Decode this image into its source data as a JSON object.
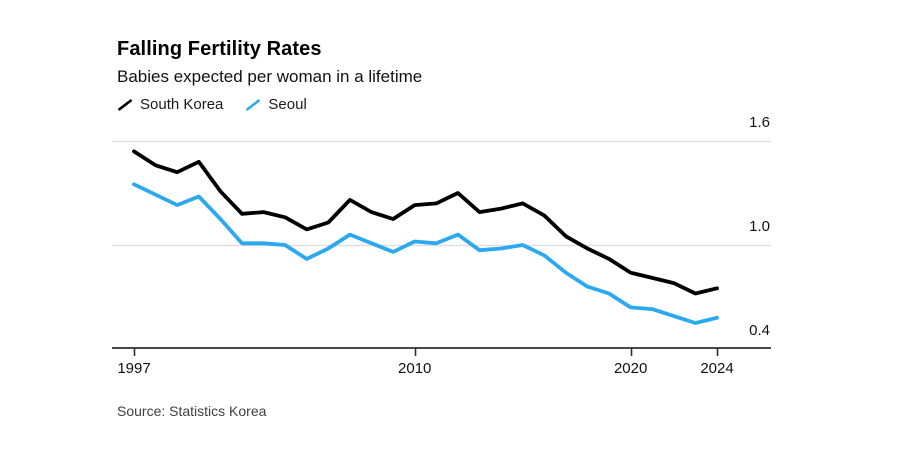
{
  "header": {
    "title": "Falling Fertility Rates",
    "subtitle": "Babies expected per woman in a lifetime"
  },
  "legend": [
    {
      "label": "South Korea",
      "color": "#000000"
    },
    {
      "label": "Seoul",
      "color": "#2ba9f0"
    }
  ],
  "source": "Source: Statistics Korea",
  "colors": {
    "background": "#ffffff",
    "grid": "#dcdcdc",
    "axis": "#2e2e2e",
    "tick_text": "#111111",
    "source_text": "#3f3f3f"
  },
  "chart_data": {
    "type": "line",
    "title": "Falling Fertility Rates",
    "subtitle": "Babies expected per woman in a lifetime",
    "xlabel": "",
    "ylabel": "",
    "x": [
      1997,
      1998,
      1999,
      2000,
      2001,
      2002,
      2003,
      2004,
      2005,
      2006,
      2007,
      2008,
      2009,
      2010,
      2011,
      2012,
      2013,
      2014,
      2015,
      2016,
      2017,
      2018,
      2019,
      2020,
      2021,
      2022,
      2023,
      2024
    ],
    "series": [
      {
        "name": "South Korea",
        "color": "#000000",
        "values": [
          1.54,
          1.46,
          1.42,
          1.48,
          1.31,
          1.18,
          1.19,
          1.16,
          1.09,
          1.13,
          1.26,
          1.19,
          1.15,
          1.23,
          1.24,
          1.3,
          1.19,
          1.21,
          1.24,
          1.17,
          1.05,
          0.98,
          0.92,
          0.84,
          0.81,
          0.78,
          0.72,
          0.75
        ]
      },
      {
        "name": "Seoul",
        "color": "#2ba9f0",
        "values": [
          1.35,
          1.29,
          1.23,
          1.28,
          1.15,
          1.01,
          1.01,
          1.0,
          0.92,
          0.98,
          1.06,
          1.01,
          0.96,
          1.02,
          1.01,
          1.06,
          0.97,
          0.98,
          1.0,
          0.94,
          0.84,
          0.76,
          0.72,
          0.64,
          0.63,
          0.59,
          0.55,
          0.58
        ]
      }
    ],
    "ylim": [
      0.4,
      1.6
    ],
    "yticks": [
      0.4,
      1.0,
      1.6
    ],
    "ytick_labels": [
      "0.4",
      "1.0",
      "1.6"
    ],
    "xticks": [
      1997,
      2010,
      2020,
      2024
    ],
    "xtick_labels": [
      "1997",
      "2010",
      "2020",
      "2024"
    ],
    "grid": "horizontal",
    "legend_position": "top-left",
    "source": "Source: Statistics Korea"
  }
}
